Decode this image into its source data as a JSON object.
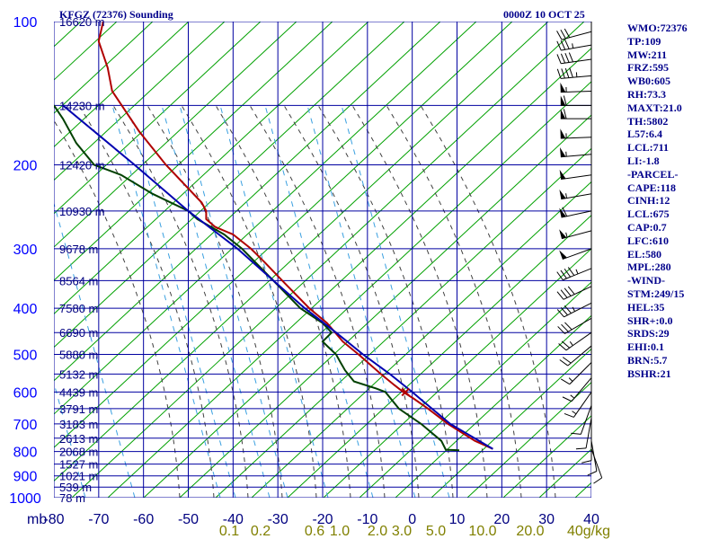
{
  "header": {
    "station": "KFGZ (72376) Sounding",
    "valid_time": "0000Z 10 OCT 25"
  },
  "parameters": [
    "WMO:72376",
    "TP:109",
    "MW:211",
    "FRZ:595",
    "WB0:605",
    "RH:73.3",
    "MAXT:21.0",
    "TH:5802",
    "L57:6.4",
    "LCL:711",
    "LI:-1.8",
    "-PARCEL-",
    "CAPE:118",
    "CINH:12",
    "LCL:675",
    "CAP:0.7",
    "LFC:610",
    "EL:580",
    "MPL:280",
    "-WIND-",
    "STM:249/15",
    "HEL:35",
    "SHR+:0.0",
    "SRDS:29",
    "EHI:0.1",
    "BRN:5.7",
    "BSHR:21"
  ],
  "colors": {
    "isobar": "#0000a0",
    "isotherm": "#0000a0",
    "dry_adiabat": "#00a000",
    "moist_adiabat": "#404040",
    "mixing_ratio": "#3aa0e0",
    "temperature": "#b00000",
    "dewpoint": "#004000",
    "parcel": "#0000b0",
    "wind_barb": "#000000"
  },
  "chart_data": {
    "type": "skew-t log-p sounding",
    "pressure_axis": {
      "label": "mb",
      "scale": "log",
      "range_mb": [
        1000,
        100
      ],
      "ticks": [
        100,
        200,
        300,
        400,
        500,
        600,
        700,
        800,
        900,
        1000
      ]
    },
    "temperature_axis": {
      "unit": "C",
      "range": [
        -80,
        40
      ],
      "ticks": [
        -80,
        -70,
        -60,
        -50,
        -40,
        -30,
        -20,
        -10,
        0,
        10,
        20,
        30,
        40
      ],
      "tick_labels": [
        "-80",
        "-70",
        "-60",
        "-50",
        "-40",
        "-30",
        "-20",
        "-10",
        "0",
        "10",
        "20",
        "30",
        "40"
      ]
    },
    "height_labels": [
      {
        "p": 100,
        "label": "16620 m"
      },
      {
        "p": 150,
        "label": "14230 m"
      },
      {
        "p": 200,
        "label": "12420 m"
      },
      {
        "p": 250,
        "label": "10930 m"
      },
      {
        "p": 300,
        "label": "9678 m"
      },
      {
        "p": 350,
        "label": "8564 m"
      },
      {
        "p": 400,
        "label": "7580 m"
      },
      {
        "p": 450,
        "label": "6690 m"
      },
      {
        "p": 500,
        "label": "5880 m"
      },
      {
        "p": 550,
        "label": "5132 m"
      },
      {
        "p": 600,
        "label": "4439 m"
      },
      {
        "p": 650,
        "label": "3791 m"
      },
      {
        "p": 700,
        "label": "3183 m"
      },
      {
        "p": 750,
        "label": "2613 m"
      },
      {
        "p": 800,
        "label": "2068 m"
      },
      {
        "p": 850,
        "label": "1527 m"
      },
      {
        "p": 900,
        "label": "1021 m"
      },
      {
        "p": 950,
        "label": "539 m"
      },
      {
        "p": 1000,
        "label": "78 m"
      }
    ],
    "mixing_ratio_labels": [
      "0.1",
      "0.2",
      "0.6",
      "1.0",
      "2.0",
      "3.0",
      "5.0",
      "10.0",
      "20.0",
      "40g/kg"
    ],
    "series": [
      {
        "key": "temperature",
        "data": [
          [
            790,
            18
          ],
          [
            760,
            14
          ],
          [
            700,
            8
          ],
          [
            650,
            3.5
          ],
          [
            620,
            0.4
          ],
          [
            600,
            -2
          ],
          [
            580,
            -4
          ],
          [
            550,
            -7
          ],
          [
            500,
            -12
          ],
          [
            470,
            -15.5
          ],
          [
            430,
            -19
          ],
          [
            400,
            -23
          ],
          [
            350,
            -29
          ],
          [
            320,
            -33
          ],
          [
            300,
            -36
          ],
          [
            280,
            -40
          ],
          [
            270,
            -44
          ],
          [
            260,
            -46
          ],
          [
            250,
            -46
          ],
          [
            240,
            -47
          ],
          [
            200,
            -55
          ],
          [
            170,
            -61
          ],
          [
            140,
            -67
          ],
          [
            125,
            -68
          ],
          [
            110,
            -70
          ],
          [
            100,
            -69
          ]
        ]
      },
      {
        "key": "dewpoint",
        "data": [
          [
            795,
            10.5
          ],
          [
            793,
            7.5
          ],
          [
            760,
            6.5
          ],
          [
            700,
            2
          ],
          [
            650,
            -3
          ],
          [
            600,
            -6
          ],
          [
            590,
            -8
          ],
          [
            570,
            -13
          ],
          [
            540,
            -15
          ],
          [
            520,
            -16
          ],
          [
            500,
            -17
          ],
          [
            480,
            -19
          ],
          [
            470,
            -20
          ],
          [
            450,
            -18
          ],
          [
            430,
            -20
          ],
          [
            400,
            -25
          ],
          [
            350,
            -31
          ],
          [
            300,
            -38
          ],
          [
            280,
            -42
          ],
          [
            260,
            -48
          ],
          [
            250,
            -50
          ],
          [
            230,
            -58
          ],
          [
            210,
            -65
          ],
          [
            200,
            -71
          ],
          [
            180,
            -75
          ],
          [
            160,
            -78
          ],
          [
            150,
            -80
          ]
        ]
      },
      {
        "key": "parcel",
        "data": [
          [
            790,
            18
          ],
          [
            700,
            8.5
          ],
          [
            620,
            1.8
          ],
          [
            600,
            0
          ],
          [
            550,
            -5
          ],
          [
            500,
            -11
          ],
          [
            450,
            -17
          ],
          [
            400,
            -24
          ],
          [
            350,
            -31
          ],
          [
            300,
            -39
          ],
          [
            250,
            -50
          ],
          [
            200,
            -62
          ],
          [
            150,
            -78
          ]
        ]
      }
    ],
    "lfc_marker": {
      "p": 600,
      "t": -1.5
    },
    "wind_barbs": [
      {
        "p": 105,
        "dir": 255,
        "spd": 30
      },
      {
        "p": 112,
        "dir": 260,
        "spd": 35
      },
      {
        "p": 120,
        "dir": 262,
        "spd": 40
      },
      {
        "p": 130,
        "dir": 265,
        "spd": 45
      },
      {
        "p": 140,
        "dir": 268,
        "spd": 55
      },
      {
        "p": 150,
        "dir": 270,
        "spd": 60
      },
      {
        "p": 160,
        "dir": 270,
        "spd": 60
      },
      {
        "p": 175,
        "dir": 268,
        "spd": 55
      },
      {
        "p": 190,
        "dir": 265,
        "spd": 55
      },
      {
        "p": 210,
        "dir": 262,
        "spd": 50
      },
      {
        "p": 230,
        "dir": 260,
        "spd": 55
      },
      {
        "p": 250,
        "dir": 258,
        "spd": 60
      },
      {
        "p": 275,
        "dir": 255,
        "spd": 55
      },
      {
        "p": 300,
        "dir": 250,
        "spd": 50
      },
      {
        "p": 330,
        "dir": 248,
        "spd": 45
      },
      {
        "p": 360,
        "dir": 245,
        "spd": 40
      },
      {
        "p": 390,
        "dir": 243,
        "spd": 35
      },
      {
        "p": 420,
        "dir": 240,
        "spd": 30
      },
      {
        "p": 450,
        "dir": 235,
        "spd": 25
      },
      {
        "p": 480,
        "dir": 230,
        "spd": 20
      },
      {
        "p": 520,
        "dir": 225,
        "spd": 15
      },
      {
        "p": 560,
        "dir": 220,
        "spd": 15
      },
      {
        "p": 600,
        "dir": 215,
        "spd": 15
      },
      {
        "p": 640,
        "dir": 200,
        "spd": 10
      },
      {
        "p": 680,
        "dir": 190,
        "spd": 10
      },
      {
        "p": 720,
        "dir": 180,
        "spd": 10
      },
      {
        "p": 760,
        "dir": 170,
        "spd": 10
      },
      {
        "p": 790,
        "dir": 160,
        "spd": 10
      }
    ]
  }
}
